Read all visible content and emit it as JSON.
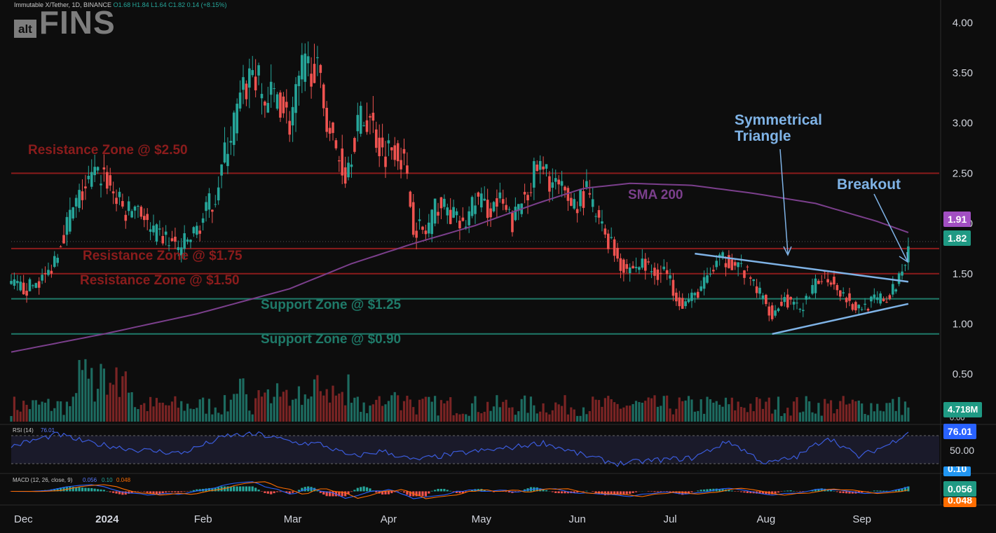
{
  "header": {
    "symbol_info": "Immutable X/Tether, 1D, BINANCE",
    "ohlc": "O1.68 H1.84 L1.64 C1.82 0.14 (+8.15%)"
  },
  "logo": {
    "alt": "alt",
    "fins": "FINS"
  },
  "colors": {
    "up": "#26a69a",
    "down": "#ef5350",
    "resistance": "#8b1c1c",
    "support": "#1f7a69",
    "sma": "#7b3f8c",
    "triangle": "#7fb3e6",
    "rsi": "#3b5bdb",
    "macd": "#2962ff",
    "signal": "#ff6d00"
  },
  "annotations": {
    "res250": "Resistance Zone @ $2.50",
    "res175": "Resistance Zone @ $1.75",
    "res150": "Resistance Zone @ $1.50",
    "sup125": "Support Zone @ $1.25",
    "sup090": "Support Zone @ $0.90",
    "sma": "SMA 200",
    "triangle1": "Symmetrical",
    "triangle2": "Triangle",
    "breakout": "Breakout"
  },
  "price_tags": {
    "sma": "1.91",
    "close": "1.82",
    "volume": "4.718M",
    "rsi": "76.01",
    "macd": "0.056",
    "signal": "0.048",
    "hist_top": "0.10",
    "vol_top": "0.00"
  },
  "rsi_panel": {
    "label": "RSI (14)",
    "value": "76.01",
    "mid": "50.00"
  },
  "macd_panel": {
    "label": "MACD (12, 26, close, 9)",
    "v1": "0.056",
    "v2": "0.10",
    "v3": "0.048"
  },
  "chart_data": {
    "type": "candlestick",
    "ylim": [
      0.25,
      4.1
    ],
    "y_ticks": [
      "4.00",
      "3.50",
      "3.00",
      "2.50",
      "2.00",
      "1.50",
      "1.00",
      "0.50"
    ],
    "y_tick_values": [
      4.0,
      3.5,
      3.0,
      2.5,
      2.0,
      1.5,
      1.0,
      0.5
    ],
    "x_ticks": [
      "Dec",
      "2024",
      "Feb",
      "Mar",
      "Apr",
      "May",
      "Jun",
      "Jul",
      "Aug",
      "Sep"
    ],
    "x_tick_days": [
      0,
      31,
      62,
      91,
      122,
      152,
      183,
      213,
      244,
      275
    ],
    "levels": [
      {
        "name": "resistance-2.50",
        "value": 2.5,
        "kind": "resistance"
      },
      {
        "name": "resistance-1.75",
        "value": 1.75,
        "kind": "resistance"
      },
      {
        "name": "resistance-1.50",
        "value": 1.5,
        "kind": "resistance"
      },
      {
        "name": "support-1.25",
        "value": 1.25,
        "kind": "support"
      },
      {
        "name": "support-0.90",
        "value": 0.9,
        "kind": "support"
      }
    ],
    "close_path": [
      [
        0,
        1.38
      ],
      [
        5,
        1.35
      ],
      [
        10,
        1.45
      ],
      [
        12,
        1.5
      ],
      [
        15,
        1.75
      ],
      [
        18,
        2.0
      ],
      [
        22,
        2.25
      ],
      [
        26,
        2.45
      ],
      [
        30,
        2.5
      ],
      [
        33,
        2.3
      ],
      [
        37,
        2.1
      ],
      [
        41,
        2.2
      ],
      [
        45,
        1.9
      ],
      [
        50,
        1.85
      ],
      [
        54,
        1.75
      ],
      [
        58,
        1.85
      ],
      [
        62,
        2.05
      ],
      [
        66,
        2.3
      ],
      [
        70,
        2.8
      ],
      [
        74,
        3.2
      ],
      [
        78,
        3.55
      ],
      [
        82,
        3.2
      ],
      [
        86,
        3.3
      ],
      [
        90,
        3.0
      ],
      [
        94,
        3.5
      ],
      [
        98,
        3.6
      ],
      [
        101,
        3.2
      ],
      [
        104,
        2.8
      ],
      [
        108,
        2.5
      ],
      [
        112,
        3.0
      ],
      [
        116,
        3.05
      ],
      [
        120,
        2.7
      ],
      [
        124,
        2.8
      ],
      [
        127,
        2.6
      ],
      [
        130,
        2.0
      ],
      [
        134,
        1.9
      ],
      [
        138,
        2.2
      ],
      [
        142,
        2.1
      ],
      [
        146,
        1.95
      ],
      [
        150,
        2.25
      ],
      [
        154,
        2.15
      ],
      [
        158,
        2.2
      ],
      [
        162,
        2.0
      ],
      [
        166,
        2.3
      ],
      [
        170,
        2.55
      ],
      [
        174,
        2.45
      ],
      [
        178,
        2.3
      ],
      [
        182,
        2.2
      ],
      [
        186,
        2.3
      ],
      [
        190,
        2.0
      ],
      [
        194,
        1.8
      ],
      [
        197,
        1.6
      ],
      [
        200,
        1.55
      ],
      [
        204,
        1.6
      ],
      [
        208,
        1.5
      ],
      [
        211,
        1.55
      ],
      [
        214,
        1.35
      ],
      [
        217,
        1.2
      ],
      [
        220,
        1.25
      ],
      [
        224,
        1.4
      ],
      [
        228,
        1.6
      ],
      [
        232,
        1.65
      ],
      [
        236,
        1.55
      ],
      [
        240,
        1.4
      ],
      [
        243,
        1.25
      ],
      [
        246,
        1.1
      ],
      [
        250,
        1.25
      ],
      [
        254,
        1.15
      ],
      [
        258,
        1.25
      ],
      [
        262,
        1.5
      ],
      [
        265,
        1.45
      ],
      [
        269,
        1.3
      ],
      [
        273,
        1.15
      ],
      [
        277,
        1.2
      ],
      [
        281,
        1.25
      ],
      [
        284,
        1.25
      ],
      [
        288,
        1.55
      ],
      [
        290,
        1.82
      ]
    ],
    "sma200_path": [
      [
        0,
        0.72
      ],
      [
        30,
        0.9
      ],
      [
        60,
        1.1
      ],
      [
        90,
        1.35
      ],
      [
        110,
        1.6
      ],
      [
        130,
        1.8
      ],
      [
        150,
        1.98
      ],
      [
        170,
        2.2
      ],
      [
        185,
        2.35
      ],
      [
        200,
        2.4
      ],
      [
        220,
        2.38
      ],
      [
        240,
        2.3
      ],
      [
        260,
        2.2
      ],
      [
        280,
        2.02
      ],
      [
        290,
        1.91
      ]
    ],
    "triangle": {
      "upper": [
        [
          221,
          1.7
        ],
        [
          290,
          1.42
        ]
      ],
      "lower": [
        [
          246,
          0.9
        ],
        [
          290,
          1.2
        ]
      ]
    },
    "rsi_range": [
      20,
      80
    ],
    "rsi_bands": [
      30,
      70
    ],
    "rsi_path": [
      [
        0,
        55
      ],
      [
        15,
        72
      ],
      [
        25,
        60
      ],
      [
        40,
        50
      ],
      [
        55,
        45
      ],
      [
        70,
        70
      ],
      [
        80,
        72
      ],
      [
        92,
        60
      ],
      [
        100,
        58
      ],
      [
        110,
        40
      ],
      [
        120,
        48
      ],
      [
        130,
        35
      ],
      [
        145,
        45
      ],
      [
        160,
        52
      ],
      [
        172,
        60
      ],
      [
        185,
        42
      ],
      [
        196,
        30
      ],
      [
        208,
        35
      ],
      [
        220,
        38
      ],
      [
        232,
        62
      ],
      [
        244,
        30
      ],
      [
        254,
        40
      ],
      [
        264,
        68
      ],
      [
        274,
        40
      ],
      [
        284,
        58
      ],
      [
        290,
        76
      ]
    ]
  }
}
